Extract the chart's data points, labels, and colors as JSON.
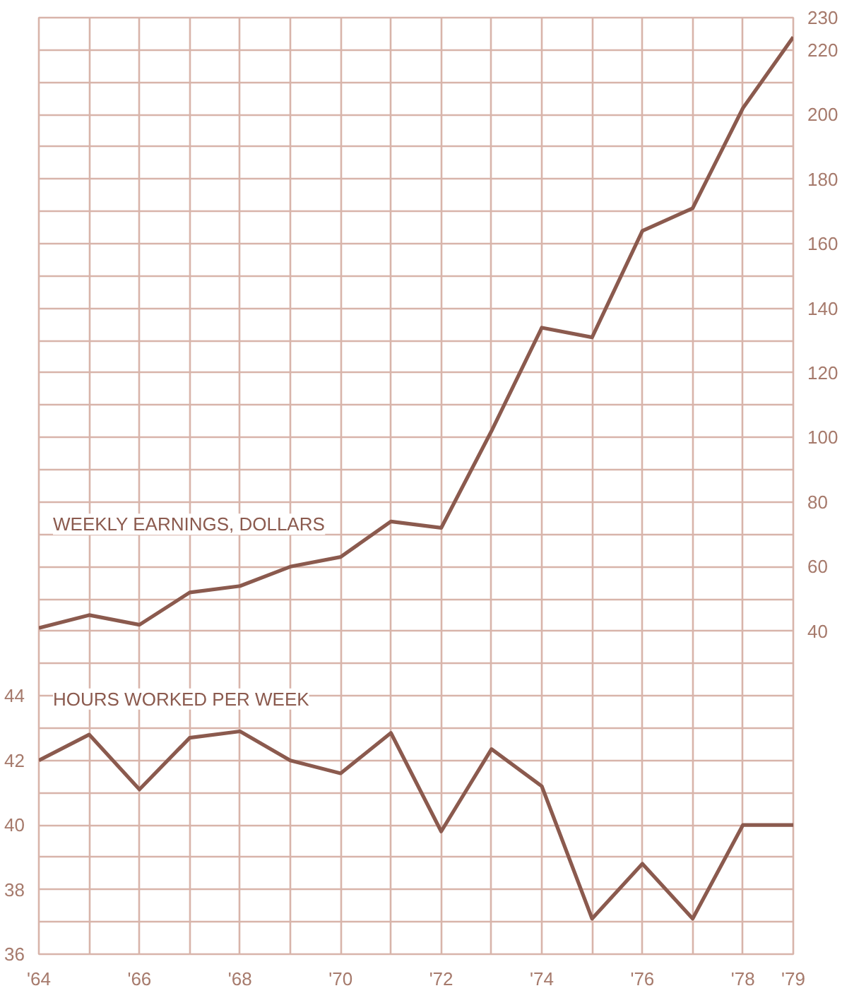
{
  "chart_data": {
    "type": "line",
    "x": [
      1964,
      1965,
      1966,
      1967,
      1968,
      1969,
      1970,
      1971,
      1972,
      1973,
      1974,
      1975,
      1976,
      1977,
      1978,
      1979
    ],
    "series": [
      {
        "name": "WEEKLY EARNINGS, DOLLARS",
        "color": "#8b5a4e",
        "axis": "y2",
        "values": [
          41,
          45,
          42,
          52,
          54,
          60,
          63,
          74,
          72,
          102,
          134,
          131,
          164,
          171,
          202,
          224
        ]
      },
      {
        "name": "HOURS WORKED PER WEEK",
        "color": "#8b5a4e",
        "values": [
          42.0,
          42.8,
          41.1,
          42.7,
          42.9,
          42.0,
          41.6,
          42.85,
          39.8,
          42.35,
          41.2,
          37.1,
          38.8,
          37.1,
          40.0,
          40.0
        ]
      }
    ],
    "xlim": [
      1964,
      1979
    ],
    "xticks": [
      {
        "value": 1964,
        "label": "'64"
      },
      {
        "value": 1965,
        "label": null
      },
      {
        "value": 1966,
        "label": "'66"
      },
      {
        "value": 1967,
        "label": null
      },
      {
        "value": 1968,
        "label": "'68"
      },
      {
        "value": 1969,
        "label": null
      },
      {
        "value": 1970,
        "label": "'70"
      },
      {
        "value": 1971,
        "label": null
      },
      {
        "value": 1972,
        "label": "'72"
      },
      {
        "value": 1973,
        "label": null
      },
      {
        "value": 1974,
        "label": "'74"
      },
      {
        "value": 1975,
        "label": null
      },
      {
        "value": 1976,
        "label": "'76"
      },
      {
        "value": 1977,
        "label": null
      },
      {
        "value": 1978,
        "label": "'78"
      },
      {
        "value": 1979,
        "label": "'79"
      }
    ],
    "ylim": [
      36,
      65
    ],
    "yticks": [
      36,
      {
        "value": 37,
        "label": null
      },
      38,
      {
        "value": 39,
        "label": null
      },
      40,
      {
        "value": 41,
        "label": null
      },
      42,
      {
        "value": 43,
        "label": null
      },
      44,
      {
        "value": 45,
        "label": null
      },
      {
        "value": 46,
        "label": null
      },
      {
        "value": 47,
        "label": null
      },
      {
        "value": 48,
        "label": null
      },
      {
        "value": 49,
        "label": null
      },
      {
        "value": 50,
        "label": null
      },
      {
        "value": 51,
        "label": null
      },
      {
        "value": 52,
        "label": null
      },
      {
        "value": 53,
        "label": null
      },
      {
        "value": 54,
        "label": null
      },
      {
        "value": 55,
        "label": null
      },
      {
        "value": 56,
        "label": null
      },
      {
        "value": 57,
        "label": null
      },
      {
        "value": 58,
        "label": null
      },
      {
        "value": 59,
        "label": null
      },
      {
        "value": 60,
        "label": null
      },
      {
        "value": 61,
        "label": null
      },
      {
        "value": 62,
        "label": null
      },
      {
        "value": 63,
        "label": null
      },
      {
        "value": 64,
        "label": null
      }
    ],
    "y2lim": [
      -60,
      230
    ],
    "y2ticks": [
      40,
      60,
      80,
      100,
      120,
      140,
      160,
      180,
      200,
      220,
      230
    ],
    "grid": true,
    "marker": "none",
    "line_style": "solid"
  }
}
